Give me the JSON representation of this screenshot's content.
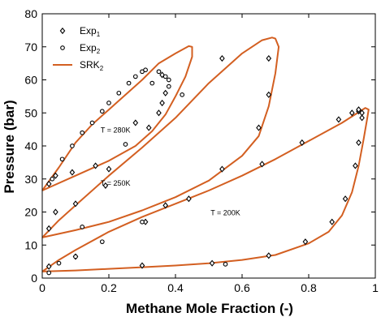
{
  "chart_data": {
    "type": "scatter",
    "xlabel": "Methane Mole Fraction (-)",
    "ylabel": "Pressure (bar)",
    "xlim": [
      0,
      1
    ],
    "ylim": [
      0,
      80
    ],
    "x_ticks": [
      "0",
      "0.2",
      "0.4",
      "0.6",
      "0.8",
      "1"
    ],
    "y_ticks": [
      "0",
      "10",
      "20",
      "30",
      "40",
      "50",
      "60",
      "70",
      "80"
    ],
    "grid": false,
    "legend_position": "top-left",
    "legend": [
      {
        "label": "Exp",
        "sub": "1",
        "marker": "diamond"
      },
      {
        "label": "Exp",
        "sub": "2",
        "marker": "circle"
      },
      {
        "label": "SRK",
        "sub": "2",
        "marker": "line"
      }
    ],
    "colors": {
      "srk": "#d35f21",
      "markers": "#000000",
      "frame": "#000000"
    },
    "annotations": [
      {
        "text": "T = 280K",
        "x": 0.22,
        "y": 44
      },
      {
        "text": "T = 250K",
        "x": 0.22,
        "y": 28
      },
      {
        "text": "T = 200K",
        "x": 0.55,
        "y": 19
      }
    ],
    "series": [
      {
        "name": "Exp1",
        "marker": "diamond",
        "points": [
          [
            0.02,
            3.5
          ],
          [
            0.1,
            6.5
          ],
          [
            0.3,
            3.8
          ],
          [
            0.51,
            4.5
          ],
          [
            0.68,
            6.8
          ],
          [
            0.79,
            11
          ],
          [
            0.87,
            17
          ],
          [
            0.91,
            24
          ],
          [
            0.94,
            34
          ],
          [
            0.95,
            41
          ],
          [
            0.96,
            48.5
          ],
          [
            0.96,
            50
          ],
          [
            0.95,
            50.5
          ],
          [
            0.02,
            15
          ],
          [
            0.04,
            20
          ],
          [
            0.1,
            22.5
          ],
          [
            0.19,
            28
          ],
          [
            0.31,
            17
          ],
          [
            0.37,
            22
          ],
          [
            0.44,
            24
          ],
          [
            0.54,
            33
          ],
          [
            0.66,
            34.5
          ],
          [
            0.78,
            41
          ],
          [
            0.89,
            48
          ],
          [
            0.93,
            50
          ],
          [
            0.95,
            51
          ],
          [
            0.02,
            28.5
          ],
          [
            0.04,
            31
          ],
          [
            0.09,
            32
          ],
          [
            0.16,
            34
          ],
          [
            0.2,
            33
          ],
          [
            0.28,
            47
          ],
          [
            0.32,
            45.5
          ],
          [
            0.35,
            50
          ],
          [
            0.36,
            53
          ],
          [
            0.37,
            56
          ],
          [
            0.36,
            61.5
          ],
          [
            0.54,
            66.5
          ],
          [
            0.65,
            45.5
          ],
          [
            0.68,
            55.5
          ],
          [
            0.68,
            66.5
          ]
        ]
      },
      {
        "name": "Exp2",
        "marker": "circle",
        "points": [
          [
            0.02,
            1.6
          ],
          [
            0.05,
            4.5
          ],
          [
            0.1,
            6.5
          ],
          [
            0.18,
            11
          ],
          [
            0.3,
            17
          ],
          [
            0.55,
            4.2
          ],
          [
            0.03,
            30
          ],
          [
            0.06,
            36
          ],
          [
            0.09,
            40
          ],
          [
            0.12,
            44
          ],
          [
            0.15,
            47
          ],
          [
            0.18,
            50.5
          ],
          [
            0.2,
            53
          ],
          [
            0.23,
            56
          ],
          [
            0.26,
            59
          ],
          [
            0.28,
            61
          ],
          [
            0.3,
            62.5
          ],
          [
            0.31,
            63
          ],
          [
            0.35,
            62.5
          ],
          [
            0.37,
            61
          ],
          [
            0.38,
            60
          ],
          [
            0.38,
            58
          ],
          [
            0.12,
            15.5
          ],
          [
            0.25,
            40.5
          ],
          [
            0.33,
            59
          ],
          [
            0.42,
            55.5
          ]
        ]
      }
    ],
    "curves": [
      {
        "name": "SRK T=200K",
        "points": [
          [
            0.0,
            2.0
          ],
          [
            0.1,
            2.3
          ],
          [
            0.2,
            2.8
          ],
          [
            0.3,
            3.3
          ],
          [
            0.4,
            3.8
          ],
          [
            0.5,
            4.5
          ],
          [
            0.6,
            5.5
          ],
          [
            0.7,
            7.0
          ],
          [
            0.8,
            10.5
          ],
          [
            0.86,
            14
          ],
          [
            0.9,
            19
          ],
          [
            0.93,
            26
          ],
          [
            0.95,
            34
          ],
          [
            0.965,
            42
          ],
          [
            0.975,
            48
          ],
          [
            0.98,
            51
          ],
          [
            0.97,
            51.5
          ],
          [
            0.9,
            47
          ],
          [
            0.8,
            41.5
          ],
          [
            0.7,
            36
          ],
          [
            0.6,
            31
          ],
          [
            0.5,
            26.5
          ],
          [
            0.4,
            22.5
          ],
          [
            0.3,
            18.5
          ],
          [
            0.2,
            14
          ],
          [
            0.1,
            8.5
          ],
          [
            0.05,
            5.5
          ],
          [
            0.0,
            2.0
          ]
        ]
      },
      {
        "name": "SRK T=250K",
        "points": [
          [
            0.0,
            12.3
          ],
          [
            0.1,
            14.5
          ],
          [
            0.2,
            17.0
          ],
          [
            0.3,
            20.5
          ],
          [
            0.4,
            24.5
          ],
          [
            0.5,
            29.5
          ],
          [
            0.6,
            37.0
          ],
          [
            0.65,
            43.0
          ],
          [
            0.68,
            52.0
          ],
          [
            0.7,
            62.0
          ],
          [
            0.71,
            70.0
          ],
          [
            0.7,
            72.5
          ],
          [
            0.69,
            72.8
          ],
          [
            0.66,
            72.0
          ],
          [
            0.6,
            68.0
          ],
          [
            0.5,
            59.0
          ],
          [
            0.4,
            48.5
          ],
          [
            0.3,
            39.5
          ],
          [
            0.2,
            31.0
          ],
          [
            0.1,
            22.0
          ],
          [
            0.05,
            17.5
          ],
          [
            0.0,
            12.3
          ]
        ]
      },
      {
        "name": "SRK T=280K",
        "points": [
          [
            0.0,
            26.5
          ],
          [
            0.1,
            31.0
          ],
          [
            0.2,
            35.5
          ],
          [
            0.28,
            40.0
          ],
          [
            0.33,
            44.5
          ],
          [
            0.37,
            49.5
          ],
          [
            0.4,
            55.0
          ],
          [
            0.43,
            61.0
          ],
          [
            0.45,
            67.0
          ],
          [
            0.45,
            70.0
          ],
          [
            0.44,
            70.2
          ],
          [
            0.4,
            68.0
          ],
          [
            0.35,
            65.0
          ],
          [
            0.3,
            60.0
          ],
          [
            0.2,
            51.0
          ],
          [
            0.15,
            46.5
          ],
          [
            0.1,
            41.0
          ],
          [
            0.05,
            33.5
          ],
          [
            0.0,
            26.5
          ]
        ]
      }
    ]
  }
}
